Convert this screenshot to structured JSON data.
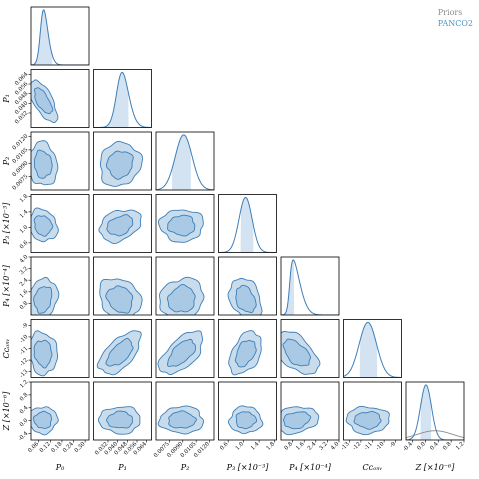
{
  "legend": {
    "priors_label": "Priors",
    "posterior_label": "PANCO2"
  },
  "colors": {
    "posterior": "#3d7eb8",
    "fill_outer": "#c9dcec",
    "fill_inner": "#a9c9e4",
    "band": "#d3e3f1",
    "prior": "#8c8c8c",
    "frame": "#000000"
  },
  "chart_data": {
    "type": "corner",
    "params": [
      {
        "label": "P",
        "sub": "0",
        "suffix": "",
        "ylabel": "",
        "lim": [
          0.02,
          0.32
        ],
        "ticks": [
          0.06,
          0.12,
          0.18,
          0.24,
          0.3
        ],
        "tick_labels": [
          "0.06",
          "0.12",
          "0.18",
          "0.24",
          "0.30"
        ],
        "mean": 0.07,
        "sd": 0.03,
        "skew": 2.0,
        "band": [
          0.035,
          0.13
        ]
      },
      {
        "label": "P",
        "sub": "1",
        "suffix": "",
        "lim": [
          0.02,
          0.068
        ],
        "ticks": [
          0.032,
          0.04,
          0.048,
          0.056,
          0.064
        ],
        "tick_labels": [
          "0.032",
          "0.040",
          "0.048",
          "0.056",
          "0.064"
        ],
        "mean": 0.04,
        "sd": 0.007,
        "skew": 1.4,
        "band": [
          0.03,
          0.049
        ]
      },
      {
        "label": "P",
        "sub": "2",
        "suffix": "",
        "lim": [
          0.006,
          0.0125
        ],
        "ticks": [
          0.0075,
          0.009,
          0.0105,
          0.012
        ],
        "tick_labels": [
          "0.0075",
          "0.0090",
          "0.0105",
          "0.0120"
        ],
        "mean": 0.0088,
        "sd": 0.001,
        "skew": 0.4,
        "band": [
          0.0078,
          0.0099
        ]
      },
      {
        "label": "P",
        "sub": "3",
        "suffix": " [×10⁻³]",
        "lim": [
          0.35,
          1.85
        ],
        "ticks": [
          0.6,
          1.0,
          1.4,
          1.8
        ],
        "tick_labels": [
          "0.6",
          "1.0",
          "1.4",
          "1.8"
        ],
        "mean": 1.05,
        "sd": 0.17,
        "skew": 0.0,
        "band": [
          0.92,
          1.25
        ]
      },
      {
        "label": "P",
        "sub": "4",
        "suffix": " [×10⁻⁴]",
        "lim": [
          0.0,
          4.0
        ],
        "ticks": [
          0.8,
          1.6,
          2.4,
          3.2,
          4.0
        ],
        "tick_labels": [
          "0.8",
          "1.6",
          "2.4",
          "3.2",
          "4.0"
        ],
        "mean": 0.6,
        "sd": 0.6,
        "skew": 4.0,
        "band": [
          0.05,
          0.9
        ]
      },
      {
        "label": "C",
        "sub": "conv",
        "suffix": "",
        "lim": [
          -13.5,
          -8.5
        ],
        "ticks": [
          -13,
          -12,
          -11,
          -10,
          -9
        ],
        "tick_labels": [
          "-13",
          "-12",
          "-11",
          "-10",
          "-9"
        ],
        "mean": -11.4,
        "sd": 0.75,
        "skew": 0.0,
        "band": [
          -12.1,
          -10.6
        ]
      },
      {
        "label": "Z",
        "sub": "",
        "suffix": " [×10⁻⁶]",
        "lim": [
          -0.6,
          1.2
        ],
        "ticks": [
          -0.4,
          0.0,
          0.4,
          0.8,
          1.2
        ],
        "tick_labels": [
          "-0.4",
          "0.0",
          "0.4",
          "0.8",
          "1.2"
        ],
        "mean": 0.02,
        "sd": 0.17,
        "skew": 0.0,
        "band": [
          -0.15,
          0.18
        ],
        "prior_curve": true
      }
    ],
    "x_axis_labels": [
      "P₀",
      "P₁",
      "P₂",
      "P₃ [×10⁻³]",
      "P₄ [×10⁻⁴]",
      "Cᴄₒₙᵥ",
      "Z [×10⁻⁶]"
    ],
    "correlations": {
      "1-0": -0.65,
      "2-0": -0.1,
      "2-1": 0.1,
      "3-0": -0.15,
      "3-1": 0.3,
      "3-2": 0.0,
      "4-0": 0.2,
      "4-1": -0.2,
      "4-2": 0.1,
      "4-3": -0.3,
      "5-0": -0.1,
      "5-1": 0.6,
      "5-2": 0.6,
      "5-3": 0.4,
      "5-4": -0.5,
      "6-0": 0.0,
      "6-1": 0.0,
      "6-2": 0.0,
      "6-3": 0.0,
      "6-4": 0.2,
      "6-5": 0.0
    },
    "contour_levels": [
      "68%",
      "95%"
    ],
    "grid": false,
    "legend_position": "top-right"
  }
}
